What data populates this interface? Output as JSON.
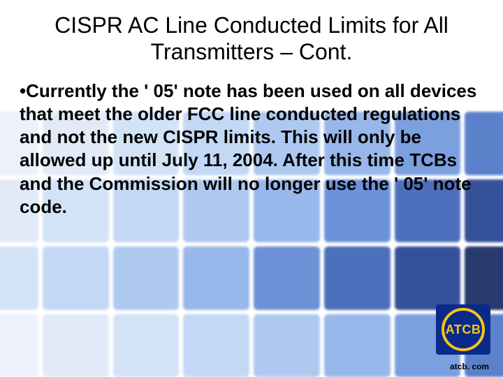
{
  "slide": {
    "title": "CISPR AC Line Conducted Limits for All Transmitters – Cont.",
    "bullet_marker": "•",
    "body": "Currently the ' 05' note has been used on all devices that meet the older FCC line conducted regulations and not the new CISPR limits.  This will only be allowed up until July 11, 2004.  After this time TCBs and the Commission will no longer use the ' 05' note code.",
    "title_fontsize": 32,
    "body_fontsize": 26,
    "body_fontweight": 700,
    "text_color": "#000000"
  },
  "logo": {
    "text": "ATCB",
    "bg_color": "#0a2a8a",
    "ring_color": "#f5c518",
    "text_color": "#f5c518"
  },
  "footer": {
    "url": "atcb. com"
  },
  "background": {
    "cell_colors": [
      "#eaf0fb",
      "#dfe8f8",
      "#cfe0f7",
      "#bcd4f4",
      "#a6c4ef",
      "#8db0e8",
      "#6e95db",
      "#4a74c6",
      "#dfe8f8",
      "#cfe0f7",
      "#bcd4f4",
      "#a6c4ef",
      "#8db0e8",
      "#5e86d3",
      "#3a61b5",
      "#203f8e",
      "#cfe0f7",
      "#bcd4f4",
      "#a6c4ef",
      "#8db0e8",
      "#5e86d3",
      "#3a61b5",
      "#203f8e",
      "#11255f",
      "#eaf0fb",
      "#dfe8f8",
      "#cfe0f7",
      "#bcd4f4",
      "#a6c4ef",
      "#8db0e8",
      "#6e95db",
      "#4a74c6"
    ]
  }
}
